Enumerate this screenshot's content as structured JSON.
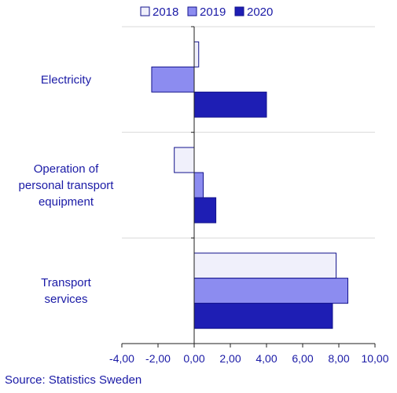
{
  "source": "Source: Statistics Sweden",
  "colors": {
    "text": "#1a1aa6",
    "axis": "#1f1f1f",
    "grid": "#d9d9d9",
    "bar_stroke": "#12128c"
  },
  "chart_data": {
    "type": "bar",
    "orientation": "horizontal",
    "categories": [
      "Electricity",
      "Operation of personal transport equipment",
      "Transport services"
    ],
    "category_label_lines": [
      [
        "Electricity"
      ],
      [
        "Operation of",
        "personal transport",
        "equipment"
      ],
      [
        "Transport",
        "services"
      ]
    ],
    "series": [
      {
        "name": "2018",
        "color": "#f0f0fb",
        "values": [
          0.25,
          -1.1,
          7.85
        ]
      },
      {
        "name": "2019",
        "color": "#8c8cf0",
        "values": [
          -2.35,
          0.5,
          8.5
        ]
      },
      {
        "name": "2020",
        "color": "#1e1eb4",
        "values": [
          4.0,
          1.2,
          7.65
        ]
      }
    ],
    "xlim": [
      -4,
      10
    ],
    "x_ticks": [
      -4,
      -2,
      0,
      2,
      4,
      6,
      8,
      10
    ],
    "x_tick_labels": [
      "-4,00",
      "-2,00",
      "0,00",
      "2,00",
      "4,00",
      "6,00",
      "8,00",
      "10,00"
    ],
    "grid": true,
    "legend_position": "top",
    "title": "",
    "xlabel": "",
    "ylabel": ""
  }
}
